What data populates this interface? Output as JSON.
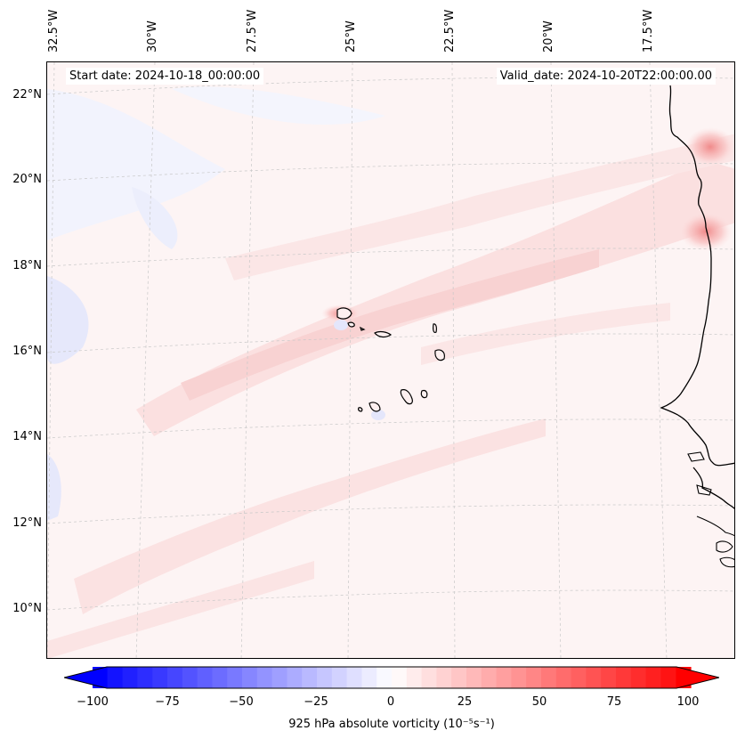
{
  "header": {
    "start_date": "Start date: 2024-10-18_00:00:00",
    "valid_date": "Valid_date: 2024-10-20T22:00:00.00"
  },
  "longitude_labels": [
    "32.5°W",
    "30°W",
    "27.5°W",
    "25°W",
    "22.5°W",
    "20°W",
    "17.5°W"
  ],
  "latitude_labels": [
    "22°N",
    "20°N",
    "18°N",
    "16°N",
    "14°N",
    "12°N",
    "10°N"
  ],
  "colorbar": {
    "label": "925 hPa absolute vorticity (10⁻⁵s⁻¹)",
    "ticks": [
      "−100",
      "−75",
      "−50",
      "−25",
      "0",
      "25",
      "50",
      "75",
      "100"
    ],
    "min": -100,
    "max": 100,
    "colormap": "bwr",
    "colors": {
      "low": "#0000ff",
      "mid": "#ffffff",
      "high": "#ff0000"
    }
  },
  "map": {
    "projection": "Lambert conformal",
    "grid": true,
    "coastline_color": "#000000",
    "features": [
      "Cape Verde islands",
      "West African coast"
    ]
  }
}
